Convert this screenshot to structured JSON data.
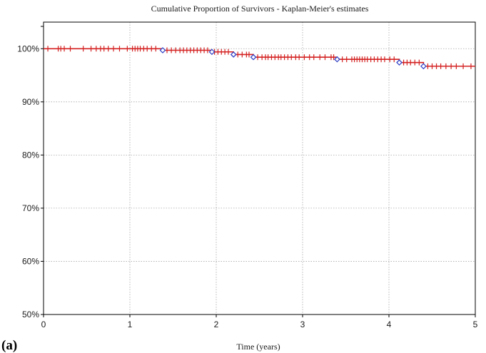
{
  "chart_data": {
    "type": "line",
    "title": "Cumulative Proportion of Survivors - Kaplan-Meier's estimates",
    "xlabel": "Time (years)",
    "ylabel": "",
    "xlim": [
      0,
      5
    ],
    "ylim": [
      0.5,
      1.05
    ],
    "x_ticks": [
      0,
      1,
      2,
      3,
      4,
      5
    ],
    "x_tick_labels": [
      "0",
      "1",
      "2",
      "3",
      "4",
      "5"
    ],
    "y_ticks": [
      0.5,
      0.6,
      0.7,
      0.8,
      0.9,
      1.0
    ],
    "y_tick_labels": [
      "50%",
      "60%",
      "70%",
      "80%",
      "90%",
      "100%"
    ],
    "grid": true,
    "series": [
      {
        "line_color": "#d42020",
        "marker_color": "#2b3cc4",
        "steps": [
          {
            "x": 0.0,
            "y": 1.0
          },
          {
            "x": 1.38,
            "y": 0.997
          },
          {
            "x": 1.95,
            "y": 0.994
          },
          {
            "x": 2.2,
            "y": 0.989
          },
          {
            "x": 2.43,
            "y": 0.984
          },
          {
            "x": 3.4,
            "y": 0.98
          },
          {
            "x": 4.12,
            "y": 0.974
          },
          {
            "x": 4.4,
            "y": 0.967
          }
        ],
        "end_x": 5.0,
        "events": [
          {
            "x": 1.38,
            "y": 0.997
          },
          {
            "x": 1.95,
            "y": 0.994
          },
          {
            "x": 2.2,
            "y": 0.989
          },
          {
            "x": 2.43,
            "y": 0.984
          },
          {
            "x": 3.4,
            "y": 0.98
          },
          {
            "x": 4.12,
            "y": 0.974
          },
          {
            "x": 4.4,
            "y": 0.967
          }
        ],
        "censored_x": [
          0.05,
          0.17,
          0.2,
          0.24,
          0.31,
          0.46,
          0.55,
          0.61,
          0.66,
          0.7,
          0.75,
          0.81,
          0.88,
          0.97,
          1.03,
          1.06,
          1.09,
          1.12,
          1.16,
          1.2,
          1.25,
          1.3,
          1.43,
          1.48,
          1.53,
          1.58,
          1.62,
          1.66,
          1.7,
          1.74,
          1.78,
          1.82,
          1.86,
          1.9,
          1.98,
          2.02,
          2.06,
          2.1,
          2.14,
          2.25,
          2.3,
          2.35,
          2.38,
          2.48,
          2.53,
          2.57,
          2.6,
          2.64,
          2.68,
          2.72,
          2.75,
          2.79,
          2.83,
          2.87,
          2.92,
          2.96,
          3.02,
          3.08,
          3.13,
          3.2,
          3.26,
          3.33,
          3.36,
          3.46,
          3.51,
          3.57,
          3.6,
          3.63,
          3.66,
          3.69,
          3.72,
          3.75,
          3.79,
          3.83,
          3.87,
          3.91,
          3.95,
          4.01,
          4.06,
          4.17,
          4.21,
          4.25,
          4.3,
          4.35,
          4.45,
          4.5,
          4.55,
          4.6,
          4.66,
          4.72,
          4.78,
          4.86,
          4.95
        ]
      }
    ]
  },
  "panel_label": "(a)"
}
